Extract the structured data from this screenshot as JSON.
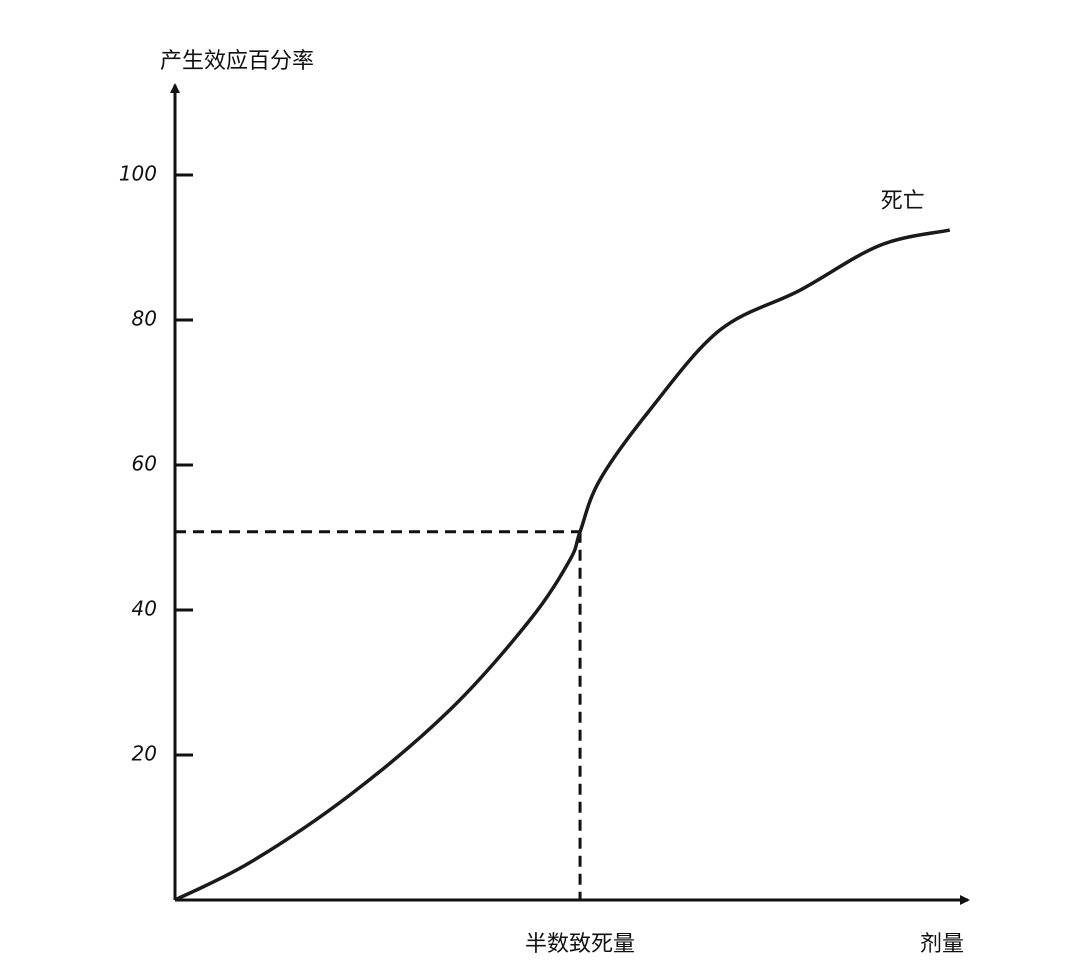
{
  "chart_data": {
    "type": "line",
    "y_label": "产生效应百分率",
    "x_label": "剂量",
    "x": [
      0,
      9.6,
      22.3,
      35,
      45.2,
      50.3,
      51.6,
      54.1,
      60.5,
      69.4,
      79.6,
      89.8,
      98.7
    ],
    "series": [
      {
        "name": "死亡",
        "color": "#1a1a1a",
        "values": [
          0,
          5.2,
          14.5,
          26.2,
          38.6,
          46.9,
          50.8,
          57.9,
          67.6,
          78.6,
          84.1,
          90.3,
          92.4
        ]
      }
    ],
    "xlim": [
      0,
      100
    ],
    "ylim": [
      0,
      112
    ],
    "yticks": [
      20,
      40,
      60,
      80,
      100
    ],
    "marker": {
      "x": 51.6,
      "y": 50.8,
      "label": "半数致死量"
    }
  }
}
